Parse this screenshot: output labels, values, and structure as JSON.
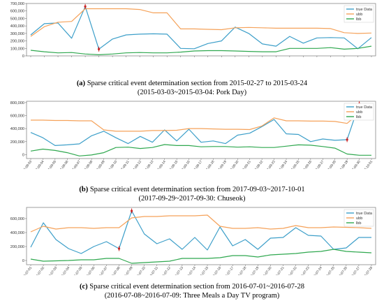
{
  "colors": {
    "true": "#3d9fc9",
    "ubb": "#f5a25a",
    "lbb": "#2fa84f",
    "marker": "#cc2222"
  },
  "legend": {
    "true": "true Data",
    "ubb": "ubb",
    "lbb": "lbb"
  },
  "captions": [
    {
      "letter": "(a)",
      "line1": "Sparse critical event determination section from 2015-02-27 to 2015-03-24",
      "line2": "(2015-03-03~2015-03-04: Pork Day)"
    },
    {
      "letter": "(b)",
      "line1": "Sparse critical event determination section from 2017-09-03~2017-10-01",
      "line2": "(2017-09-29~2017-09-30: Chuseok)"
    },
    {
      "letter": "(c)",
      "line1": "Sparse critical event determination section from 2016-07-01~2016-07-28",
      "line2": "(2016-07-08~2016-07-09: Three Meals a Day TV program)"
    }
  ],
  "chart_data": [
    {
      "type": "line",
      "x": [
        "2015-02-27",
        "2015-02-28",
        "2015-03-01",
        "2015-03-02",
        "2015-03-03",
        "2015-03-04",
        "2015-03-05",
        "2015-03-06",
        "2015-03-07",
        "2015-03-08",
        "2015-03-09",
        "2015-03-10",
        "2015-03-11",
        "2015-03-12",
        "2015-03-13",
        "2015-03-14",
        "2015-03-15",
        "2015-03-16",
        "2015-03-17",
        "2015-03-18",
        "2015-03-19",
        "2015-03-20",
        "2015-03-21",
        "2015-03-22",
        "2015-03-23",
        "2015-03-24"
      ],
      "yticks": [
        "0",
        "100,000",
        "200,000",
        "300,000",
        "400,000",
        "500,000",
        "600,000",
        "700,000"
      ],
      "ylim": [
        0,
        700000
      ],
      "legend_position": "top-right",
      "markers": [
        4,
        5
      ],
      "series": [
        {
          "name": "true Data",
          "key": "true",
          "values": [
            280000,
            430000,
            440000,
            235000,
            660000,
            90000,
            225000,
            280000,
            290000,
            295000,
            290000,
            100000,
            95000,
            165000,
            200000,
            385000,
            300000,
            160000,
            130000,
            260000,
            170000,
            240000,
            245000,
            240000,
            95000,
            245000
          ]
        },
        {
          "name": "ubb",
          "key": "ubb",
          "values": [
            260000,
            390000,
            450000,
            460000,
            630000,
            630000,
            630000,
            630000,
            620000,
            575000,
            575000,
            360000,
            360000,
            355000,
            350000,
            375000,
            380000,
            375000,
            370000,
            370000,
            370000,
            370000,
            365000,
            310000,
            300000,
            305000
          ]
        },
        {
          "name": "lbb",
          "key": "lbb",
          "values": [
            75000,
            55000,
            40000,
            45000,
            25000,
            15000,
            25000,
            40000,
            45000,
            40000,
            40000,
            50000,
            65000,
            70000,
            70000,
            65000,
            60000,
            55000,
            55000,
            100000,
            100000,
            100000,
            110000,
            90000,
            100000,
            130000
          ]
        }
      ]
    },
    {
      "type": "line",
      "x": [
        "2017-09-03",
        "2017-09-04",
        "2017-09-05",
        "2017-09-06",
        "2017-09-07",
        "2017-09-08",
        "2017-09-09",
        "2017-09-10",
        "2017-09-11",
        "2017-09-12",
        "2017-09-13",
        "2017-09-14",
        "2017-09-15",
        "2017-09-16",
        "2017-09-17",
        "2017-09-18",
        "2017-09-19",
        "2017-09-20",
        "2017-09-21",
        "2017-09-22",
        "2017-09-23",
        "2017-09-24",
        "2017-09-25",
        "2017-09-26",
        "2017-09-27",
        "2017-09-28",
        "2017-09-29",
        "2017-09-30",
        "2017-10-01"
      ],
      "yticks": [
        "0",
        "200,000",
        "400,000",
        "600,000",
        "800,000"
      ],
      "ylim": [
        -60000,
        820000
      ],
      "legend_position": "top-right",
      "markers": [
        26,
        27
      ],
      "series": [
        {
          "name": "true Data",
          "key": "true",
          "values": [
            340000,
            260000,
            140000,
            150000,
            165000,
            290000,
            360000,
            260000,
            170000,
            280000,
            190000,
            380000,
            210000,
            390000,
            190000,
            210000,
            170000,
            300000,
            330000,
            430000,
            540000,
            320000,
            310000,
            200000,
            240000,
            220000,
            230000,
            780000,
            640000
          ]
        },
        {
          "name": "ubb",
          "key": "ubb",
          "values": [
            530000,
            530000,
            525000,
            525000,
            520000,
            520000,
            380000,
            360000,
            360000,
            360000,
            370000,
            370000,
            375000,
            400000,
            400000,
            395000,
            390000,
            390000,
            385000,
            440000,
            565000,
            520000,
            520000,
            515000,
            515000,
            510000,
            480000,
            640000,
            740000
          ]
        },
        {
          "name": "lbb",
          "key": "lbb",
          "values": [
            55000,
            85000,
            65000,
            30000,
            -20000,
            -5000,
            30000,
            110000,
            115000,
            95000,
            110000,
            155000,
            140000,
            140000,
            120000,
            125000,
            125000,
            115000,
            120000,
            110000,
            110000,
            130000,
            150000,
            145000,
            125000,
            100000,
            10000,
            -10000,
            -10000
          ]
        }
      ]
    },
    {
      "type": "line",
      "x": [
        "2016-07-01",
        "2016-07-02",
        "2016-07-03",
        "2016-07-04",
        "2016-07-05",
        "2016-07-06",
        "2016-07-07",
        "2016-07-08",
        "2016-07-09",
        "2016-07-10",
        "2016-07-11",
        "2016-07-12",
        "2016-07-13",
        "2016-07-14",
        "2016-07-15",
        "2016-07-16",
        "2016-07-17",
        "2016-07-18",
        "2016-07-19",
        "2016-07-20",
        "2016-07-21",
        "2016-07-22",
        "2016-07-23",
        "2016-07-24",
        "2016-07-25",
        "2016-07-26",
        "2016-07-27",
        "2016-07-28"
      ],
      "yticks": [
        "0",
        "200,000",
        "400,000",
        "600,000"
      ],
      "ylim": [
        -60000,
        760000
      ],
      "legend_position": "top-right",
      "markers": [
        7,
        8
      ],
      "series": [
        {
          "name": "true Data",
          "key": "true",
          "values": [
            190000,
            540000,
            300000,
            170000,
            100000,
            200000,
            270000,
            170000,
            710000,
            380000,
            240000,
            310000,
            160000,
            330000,
            150000,
            480000,
            210000,
            300000,
            160000,
            320000,
            330000,
            470000,
            360000,
            350000,
            160000,
            180000,
            330000,
            330000
          ]
        },
        {
          "name": "ubb",
          "key": "ubb",
          "values": [
            410000,
            490000,
            450000,
            470000,
            470000,
            460000,
            470000,
            470000,
            610000,
            630000,
            630000,
            640000,
            640000,
            640000,
            650000,
            490000,
            460000,
            460000,
            470000,
            450000,
            460000,
            500000,
            470000,
            470000,
            480000,
            475000,
            470000,
            460000
          ]
        },
        {
          "name": "lbb",
          "key": "lbb",
          "values": [
            20000,
            -10000,
            -5000,
            0,
            10000,
            10000,
            30000,
            30000,
            -40000,
            -30000,
            -20000,
            -10000,
            30000,
            30000,
            30000,
            40000,
            70000,
            70000,
            50000,
            80000,
            90000,
            100000,
            120000,
            130000,
            160000,
            130000,
            120000,
            110000
          ]
        }
      ]
    }
  ]
}
